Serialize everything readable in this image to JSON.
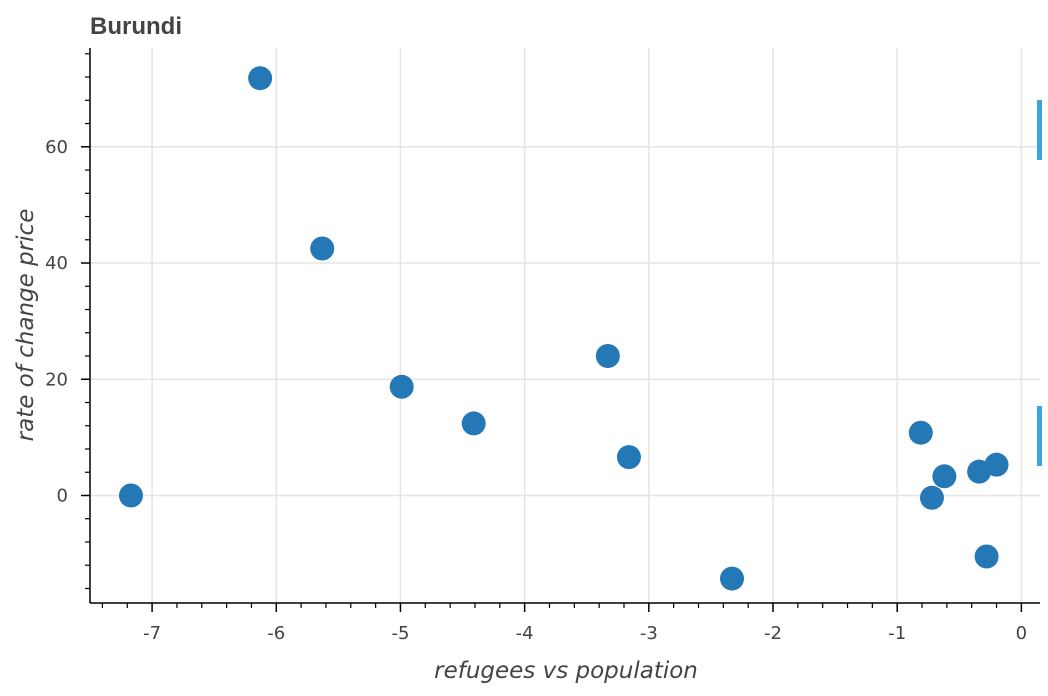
{
  "colors": {
    "marker": "#2378b5",
    "grid": "#e5e5e5",
    "axis": "#000000",
    "text": "#444444",
    "toolbar_accent": "#36a7e3"
  },
  "chart_data": {
    "type": "scatter",
    "title": "Burundi",
    "xlabel": "refugees vs population",
    "ylabel": "rate of change price",
    "xlim": [
      -7.5,
      0.15
    ],
    "ylim": [
      -18.5,
      77
    ],
    "x_ticks": [
      -7,
      -6,
      -5,
      -4,
      -3,
      -2,
      -1,
      0
    ],
    "x_tick_labels": [
      "-7",
      "-6",
      "-5",
      "-4",
      "-3",
      "-2",
      "-1",
      "0"
    ],
    "y_ticks": [
      0,
      20,
      40,
      60
    ],
    "y_tick_labels": [
      "0",
      "20",
      "40",
      "60"
    ],
    "grid": true,
    "points": [
      {
        "x": -7.17,
        "y": 0.0
      },
      {
        "x": -6.13,
        "y": 71.8
      },
      {
        "x": -5.63,
        "y": 42.5
      },
      {
        "x": -4.99,
        "y": 18.7
      },
      {
        "x": -4.41,
        "y": 12.4
      },
      {
        "x": -3.33,
        "y": 24.0
      },
      {
        "x": -3.16,
        "y": 6.6
      },
      {
        "x": -2.33,
        "y": -14.3
      },
      {
        "x": -0.81,
        "y": 10.8
      },
      {
        "x": -0.72,
        "y": -0.4
      },
      {
        "x": -0.62,
        "y": 3.3
      },
      {
        "x": -0.34,
        "y": 4.1
      },
      {
        "x": -0.28,
        "y": -10.5
      },
      {
        "x": -0.2,
        "y": 5.3
      }
    ]
  }
}
